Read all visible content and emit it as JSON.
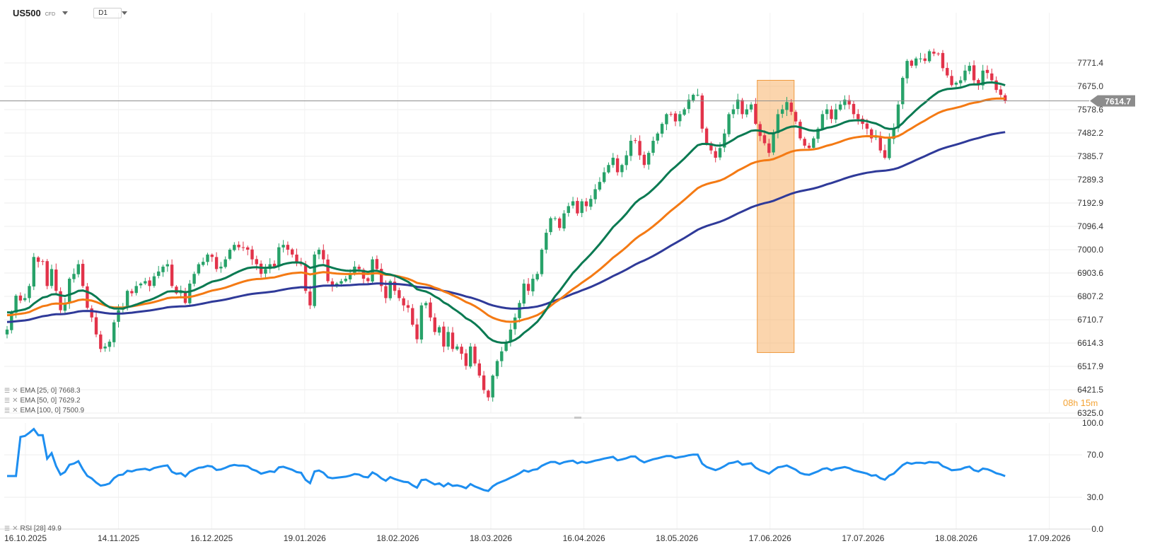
{
  "header": {
    "symbol": "US500",
    "symbol_type": "CFD",
    "timeframe": "D1"
  },
  "legend": [
    {
      "label": "EMA [25, 0] 7668.3",
      "color": "#0a7a52"
    },
    {
      "label": "EMA [50, 0] 7629.2",
      "color": "#f47a14"
    },
    {
      "label": "EMA [100, 0] 7500.9",
      "color": "#2f3a99"
    }
  ],
  "rsi_legend": "RSI [28] 49.9",
  "timer": {
    "hours": "08",
    "h_unit": "h",
    "minutes": "15",
    "m_unit": "m"
  },
  "price_tag": "7614.7",
  "colors": {
    "up": "#27a269",
    "down": "#e2334a",
    "ema25": "#0a7a52",
    "ema50": "#f47a14",
    "ema100": "#2f3a99",
    "rsi": "#1d8ef0",
    "highlight": "#f7b36a",
    "timer": "#f3a233",
    "price_tag": "#8c8c8c"
  },
  "chart_data": [
    {
      "type": "candlestick",
      "title": "US500",
      "timeframe": "D1",
      "y_ticks": [
        "7771.4",
        "7675.0",
        "7578.6",
        "7482.2",
        "7385.7",
        "7289.3",
        "7192.9",
        "7096.4",
        "7000.0",
        "6903.6",
        "6807.2",
        "6710.7",
        "6614.3",
        "6517.9",
        "6421.5",
        "6325.0"
      ],
      "ylim": [
        6325.0,
        7868.0
      ],
      "x_ticks": [
        "16.10.2025",
        "14.11.2025",
        "16.12.2025",
        "19.01.2026",
        "18.02.2026",
        "18.03.2026",
        "16.04.2026",
        "18.05.2026",
        "17.06.2026",
        "17.07.2026",
        "18.08.2026",
        "17.09.2026"
      ],
      "last_price": 7614.7,
      "highlight_box": {
        "from_bar": 169,
        "to_bar": 176,
        "low": 6575,
        "high": 7700
      },
      "closes": [
        6670,
        6740,
        6810,
        6790,
        6800,
        6850,
        6970,
        6950,
        6950,
        6850,
        6920,
        6830,
        6750,
        6780,
        6880,
        6900,
        6940,
        6850,
        6760,
        6720,
        6650,
        6590,
        6600,
        6620,
        6700,
        6750,
        6760,
        6830,
        6820,
        6850,
        6860,
        6870,
        6850,
        6890,
        6910,
        6930,
        6940,
        6850,
        6820,
        6830,
        6780,
        6860,
        6900,
        6940,
        6950,
        6980,
        6970,
        6920,
        6930,
        6960,
        7000,
        7020,
        7010,
        7010,
        7000,
        6960,
        6940,
        6900,
        6920,
        6940,
        6930,
        7010,
        7020,
        7000,
        6980,
        6950,
        6940,
        6830,
        6770,
        6980,
        7000,
        6960,
        6870,
        6850,
        6860,
        6870,
        6880,
        6900,
        6930,
        6920,
        6880,
        6870,
        6960,
        6920,
        6850,
        6800,
        6870,
        6830,
        6800,
        6770,
        6760,
        6690,
        6630,
        6770,
        6780,
        6720,
        6660,
        6680,
        6600,
        6660,
        6590,
        6600,
        6570,
        6520,
        6600,
        6530,
        6480,
        6420,
        6390,
        6480,
        6540,
        6580,
        6620,
        6670,
        6720,
        6780,
        6860,
        6830,
        6880,
        6900,
        7000,
        7070,
        7130,
        7130,
        7090,
        7150,
        7180,
        7200,
        7150,
        7200,
        7180,
        7210,
        7250,
        7280,
        7320,
        7350,
        7380,
        7320,
        7350,
        7390,
        7450,
        7450,
        7390,
        7350,
        7400,
        7450,
        7480,
        7520,
        7560,
        7560,
        7530,
        7560,
        7580,
        7620,
        7640,
        7640,
        7500,
        7440,
        7410,
        7380,
        7420,
        7480,
        7560,
        7580,
        7620,
        7560,
        7580,
        7600,
        7520,
        7470,
        7440,
        7400,
        7480,
        7560,
        7580,
        7610,
        7570,
        7530,
        7460,
        7430,
        7420,
        7460,
        7500,
        7560,
        7580,
        7540,
        7580,
        7600,
        7620,
        7600,
        7560,
        7540,
        7520,
        7500,
        7460,
        7470,
        7410,
        7380,
        7460,
        7500,
        7600,
        7710,
        7780,
        7760,
        7790,
        7790,
        7780,
        7820,
        7810,
        7810,
        7750,
        7720,
        7680,
        7690,
        7700,
        7740,
        7760,
        7700,
        7680,
        7740,
        7730,
        7700,
        7660,
        7640,
        7615
      ]
    },
    {
      "type": "line",
      "title": "RSI [28]",
      "y_ticks": [
        "100.0",
        "70.0",
        "30.0",
        "0.0"
      ],
      "ylim": [
        0,
        100
      ],
      "last_value": 49.9
    }
  ]
}
